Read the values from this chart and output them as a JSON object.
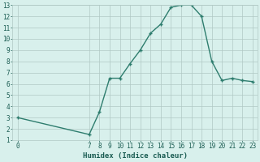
{
  "x": [
    0,
    7,
    8,
    9,
    10,
    11,
    12,
    13,
    14,
    15,
    16,
    17,
    18,
    19,
    20,
    21,
    22,
    23
  ],
  "y": [
    3.0,
    1.5,
    3.5,
    6.5,
    6.5,
    7.8,
    9.0,
    10.5,
    11.3,
    12.8,
    13.0,
    13.0,
    12.0,
    8.0,
    6.3,
    6.5,
    6.3,
    6.2
  ],
  "line_color": "#2e7d6e",
  "marker": "+",
  "bg_color": "#d8f0ec",
  "grid_color": "#b0c8c4",
  "xlabel": "Humidex (Indice chaleur)",
  "xlim": [
    -0.5,
    23.5
  ],
  "ylim": [
    1,
    13
  ],
  "xticks": [
    0,
    7,
    8,
    9,
    10,
    11,
    12,
    13,
    14,
    15,
    16,
    17,
    18,
    19,
    20,
    21,
    22,
    23
  ],
  "yticks": [
    1,
    2,
    3,
    4,
    5,
    6,
    7,
    8,
    9,
    10,
    11,
    12,
    13
  ],
  "xlabel_color": "#1a5c52",
  "tick_color": "#1a5c52",
  "label_fontsize": 6.5,
  "tick_fontsize": 5.5,
  "linewidth": 1.0,
  "markersize": 3,
  "markeredgewidth": 1.0
}
